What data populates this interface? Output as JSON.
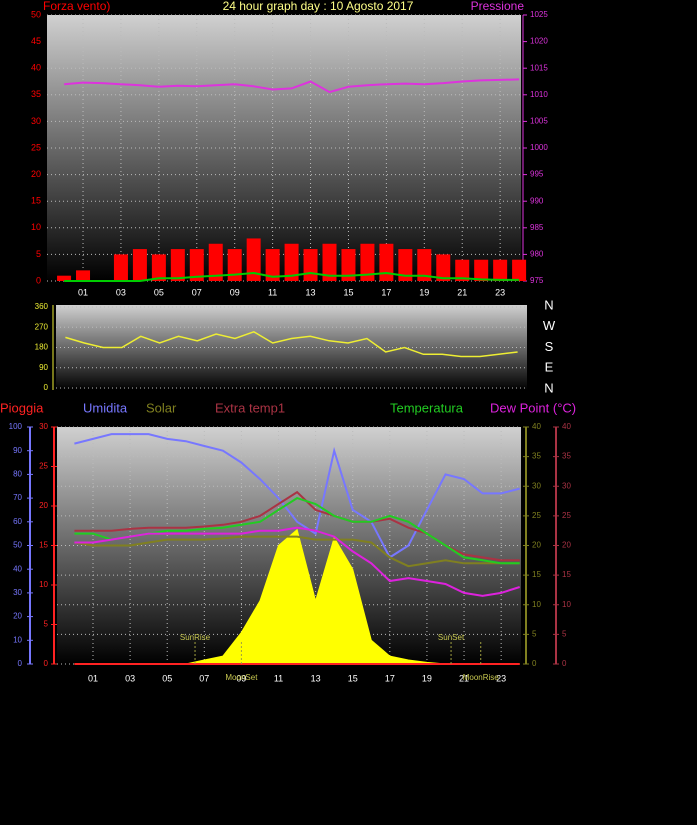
{
  "chart_data": [
    {
      "type": "combo",
      "title": "24 hour graph day : 10 Agosto 2017",
      "y_label": "Forza vento)",
      "y2_label": "Pressione",
      "x": [
        0,
        1,
        2,
        3,
        4,
        5,
        6,
        7,
        8,
        9,
        10,
        11,
        12,
        13,
        14,
        15,
        16,
        17,
        18,
        19,
        20,
        21,
        22,
        23,
        24
      ],
      "xlim": [
        -0.9,
        24.1
      ],
      "xticks": [
        {
          "value": 1,
          "label": "01"
        },
        {
          "value": 3,
          "label": "03"
        },
        {
          "value": 5,
          "label": "05"
        },
        {
          "value": 7,
          "label": "07"
        },
        {
          "value": 9,
          "label": "09"
        },
        {
          "value": 11,
          "label": "11"
        },
        {
          "value": 13,
          "label": "13"
        },
        {
          "value": 15,
          "label": "15"
        },
        {
          "value": 17,
          "label": "17"
        },
        {
          "value": 19,
          "label": "19"
        },
        {
          "value": 21,
          "label": "21"
        },
        {
          "value": 23,
          "label": "23"
        }
      ],
      "ylim": [
        0,
        50
      ],
      "yticks": [
        0,
        5,
        10,
        15,
        20,
        25,
        30,
        35,
        40,
        45,
        50
      ],
      "y2lim": [
        975,
        1025
      ],
      "y2ticks": [
        975,
        980,
        985,
        990,
        995,
        1000,
        1005,
        1010,
        1015,
        1020,
        1025
      ],
      "series": [
        {
          "type": "bar",
          "color": "#ff0000",
          "values": [
            1,
            2,
            0,
            5,
            6,
            5,
            6,
            6,
            7,
            6,
            8,
            6,
            7,
            6,
            7,
            6,
            7,
            7,
            6,
            6,
            5,
            4,
            4,
            4,
            4
          ]
        },
        {
          "type": "line",
          "color": "#00cc00",
          "values": [
            0,
            0,
            0,
            0,
            0,
            0.5,
            0.5,
            0.8,
            1,
            1.2,
            1.5,
            0.8,
            1,
            1.5,
            1,
            1,
            1.2,
            1.5,
            1,
            1,
            0.5,
            0.5,
            0.3,
            0.2,
            0.2
          ]
        },
        {
          "type": "line",
          "color": "#dd33dd",
          "axis": "y2",
          "values": [
            1012,
            1012.3,
            1012.2,
            1012,
            1011.8,
            1011.5,
            1011.7,
            1011.6,
            1011.8,
            1012,
            1011.6,
            1011,
            1011.2,
            1012.5,
            1010.5,
            1011.5,
            1011.8,
            1012,
            1012.1,
            1012,
            1012.2,
            1012.5,
            1012.7,
            1012.8,
            1012.9
          ]
        }
      ]
    },
    {
      "type": "line",
      "x": [
        0,
        1,
        2,
        3,
        4,
        5,
        6,
        7,
        8,
        9,
        10,
        11,
        12,
        13,
        14,
        15,
        16,
        17,
        18,
        19,
        20,
        21,
        22,
        23,
        24
      ],
      "xlim": [
        -0.5,
        24.5
      ],
      "ylim": [
        0,
        360
      ],
      "yticks": [
        0,
        90,
        180,
        270,
        360
      ],
      "compass": [
        "N",
        "W",
        "S",
        "E",
        "N"
      ],
      "series": [
        {
          "color": "#eeee33",
          "values": [
            225,
            200,
            180,
            180,
            230,
            200,
            230,
            210,
            240,
            220,
            250,
            200,
            220,
            230,
            210,
            200,
            220,
            160,
            180,
            150,
            150,
            140,
            140,
            150,
            160
          ]
        }
      ]
    },
    {
      "type": "combo",
      "x": [
        0,
        1,
        2,
        3,
        4,
        5,
        6,
        7,
        8,
        9,
        10,
        11,
        12,
        13,
        14,
        15,
        16,
        17,
        18,
        19,
        20,
        21,
        22,
        23,
        24
      ],
      "xlim": [
        -0.94,
        24.07
      ],
      "xticks": [
        {
          "value": 1,
          "label": "01"
        },
        {
          "value": 3,
          "label": "03"
        },
        {
          "value": 5,
          "label": "05"
        },
        {
          "value": 7,
          "label": "07"
        },
        {
          "value": 9,
          "label": "09"
        },
        {
          "value": 11,
          "label": "11"
        },
        {
          "value": 13,
          "label": "13"
        },
        {
          "value": 15,
          "label": "15"
        },
        {
          "value": 17,
          "label": "17"
        },
        {
          "value": 19,
          "label": "19"
        },
        {
          "value": 21,
          "label": "21"
        },
        {
          "value": 23,
          "label": "23"
        }
      ],
      "ylim": [
        0,
        100
      ],
      "yticks": [
        0,
        10,
        20,
        30,
        40,
        50,
        60,
        70,
        80,
        90,
        100
      ],
      "y3lim": [
        0,
        30
      ],
      "y3ticks": [
        0,
        5,
        10,
        15,
        20,
        25,
        30
      ],
      "y2lim": [
        0,
        40
      ],
      "y2ticks": [
        0,
        5,
        10,
        15,
        20,
        25,
        30,
        35,
        40
      ],
      "y4lim": [
        0,
        40
      ],
      "y4ticks": [
        0,
        5,
        10,
        15,
        20,
        25,
        30,
        35,
        40
      ],
      "series": [
        {
          "name": "Pioggia",
          "type": "line",
          "color": "#ff2222",
          "axis": "y3",
          "values": [
            0,
            0,
            0,
            0,
            0,
            0,
            0,
            0,
            0,
            0,
            0,
            0,
            0,
            0,
            0,
            0,
            0,
            0,
            0,
            0,
            0,
            0,
            0,
            0,
            0
          ]
        },
        {
          "name": "Umidita",
          "type": "line",
          "color": "#7777ff",
          "axis": "y",
          "values": [
            93,
            95,
            97,
            97,
            97,
            95,
            94,
            92,
            90,
            85,
            78,
            70,
            60,
            55,
            90,
            65,
            60,
            45,
            50,
            65,
            80,
            78,
            72,
            72,
            74
          ]
        },
        {
          "name": "Solar",
          "type": "line",
          "color": "#808020",
          "axis": "y2",
          "values": [
            20.5,
            20,
            20,
            20,
            20.5,
            21,
            21,
            21,
            21.2,
            21.5,
            21.5,
            21.5,
            21.5,
            21,
            21,
            21,
            20.5,
            18,
            16.5,
            17,
            17.5,
            17,
            17,
            17,
            17
          ]
        },
        {
          "name": "Extra temp1",
          "type": "line",
          "color": "#aa3344",
          "axis": "y4",
          "values": [
            22.5,
            22.5,
            22.5,
            22.8,
            23,
            23,
            23,
            23.2,
            23.5,
            24,
            25,
            27,
            29,
            26,
            25,
            24,
            24,
            24.5,
            23,
            22,
            20,
            18.5,
            18,
            17.5,
            17.5
          ]
        },
        {
          "name": "Temperatura",
          "type": "line",
          "color": "#22cc22",
          "axis": "y2",
          "values": [
            22,
            22,
            21,
            21.5,
            22,
            22.5,
            22.5,
            22.8,
            23,
            23.5,
            24,
            26,
            28,
            27,
            25,
            24,
            24,
            25,
            24,
            22,
            20,
            18,
            17.5,
            17,
            17
          ]
        },
        {
          "name": "Dew Point (°C)",
          "type": "line",
          "color": "#dd22dd",
          "axis": "y4",
          "values": [
            20.5,
            20.5,
            21,
            21.5,
            22,
            22,
            22,
            22,
            22,
            22,
            22.5,
            22.5,
            23,
            22.5,
            21.5,
            19,
            17,
            14,
            14.5,
            14,
            13.5,
            12,
            11.5,
            12,
            13
          ]
        },
        {
          "type": "area",
          "color": "#ffff00",
          "axis": "y3",
          "values": [
            0,
            0,
            0,
            0,
            0,
            0,
            0,
            0.5,
            1,
            4,
            8,
            15,
            17,
            8,
            16,
            12,
            3,
            1,
            0.5,
            0.2,
            0,
            0,
            0,
            0,
            0
          ]
        }
      ],
      "events": [
        {
          "label": "SunRise",
          "x": 6.5
        },
        {
          "label": "MoonSet",
          "x": 9.0
        },
        {
          "label": "SunSet",
          "x": 20.3
        },
        {
          "label": "MoonRise",
          "x": 21.9
        }
      ]
    }
  ]
}
